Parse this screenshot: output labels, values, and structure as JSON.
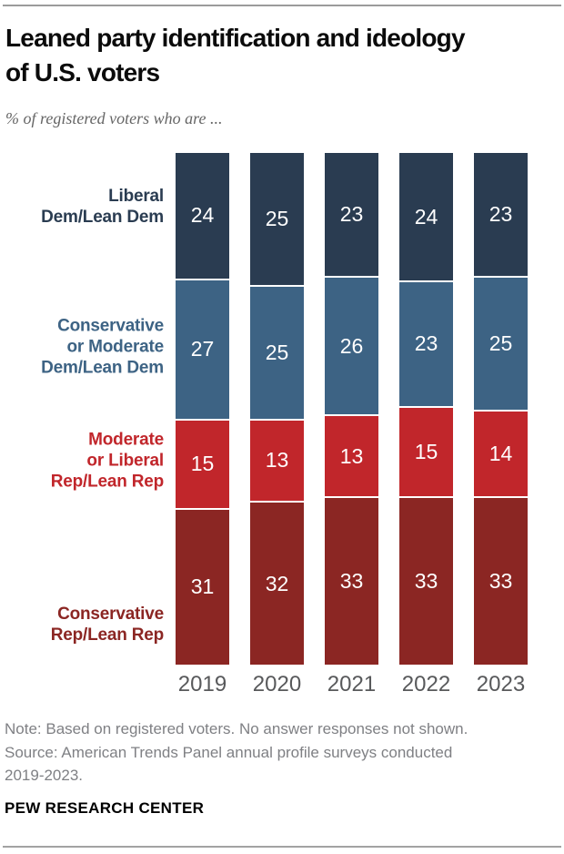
{
  "header": {
    "title": "Leaned party identification and ideology of U.S. voters",
    "title_lines": [
      "Leaned party identification and ideology",
      "of U.S. voters"
    ],
    "subtitle": "% of registered voters who are ..."
  },
  "chart_data": {
    "type": "bar",
    "stacked": true,
    "normalized_height": true,
    "title": "Leaned party identification and ideology of U.S. voters",
    "subtitle": "% of registered voters who are ...",
    "xlabel": "",
    "ylabel": "",
    "categories": [
      "2019",
      "2020",
      "2021",
      "2022",
      "2023"
    ],
    "series": [
      {
        "name": "Liberal Dem/Lean Dem",
        "label_lines": [
          "Liberal",
          "Dem/Lean Dem"
        ],
        "color": "#2a3c51",
        "values": [
          24,
          25,
          23,
          24,
          23
        ]
      },
      {
        "name": "Conservative or Moderate Dem/Lean Dem",
        "label_lines": [
          "Conservative",
          "or Moderate",
          "Dem/Lean Dem"
        ],
        "color": "#3d6384",
        "values": [
          27,
          25,
          26,
          23,
          25
        ]
      },
      {
        "name": "Moderate or Liberal Rep/Lean Rep",
        "label_lines": [
          "Moderate",
          "or Liberal",
          "Rep/Lean Rep"
        ],
        "color": "#c1262b",
        "values": [
          15,
          13,
          13,
          15,
          14
        ]
      },
      {
        "name": "Conservative Rep/Lean Rep",
        "label_lines": [
          "Conservative",
          "Rep/Lean Rep"
        ],
        "color": "#8b2623",
        "values": [
          31,
          32,
          33,
          33,
          33
        ]
      }
    ],
    "value_labels_shown": true,
    "value_label_color": "#ffffff",
    "legend_position": "left",
    "grid": false
  },
  "footer": {
    "note_lines": [
      "Note: Based on registered voters. No answer responses not shown.",
      "Source: American Trends Panel annual profile surveys conducted",
      "2019-2023."
    ],
    "brand": "PEW RESEARCH CENTER"
  }
}
